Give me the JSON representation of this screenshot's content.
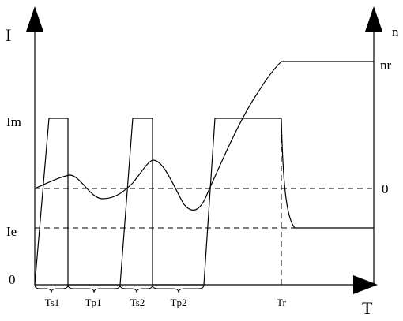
{
  "labels": {
    "left_axis": "I",
    "right_axis": "n",
    "x_axis": "T",
    "im": "Im",
    "ie": "Ie",
    "origin": "0",
    "right_zero": "0",
    "nr": "nr"
  },
  "intervals": [
    "Ts1",
    "Tp1",
    "Ts2",
    "Tp2"
  ],
  "marker": "Tr"
}
